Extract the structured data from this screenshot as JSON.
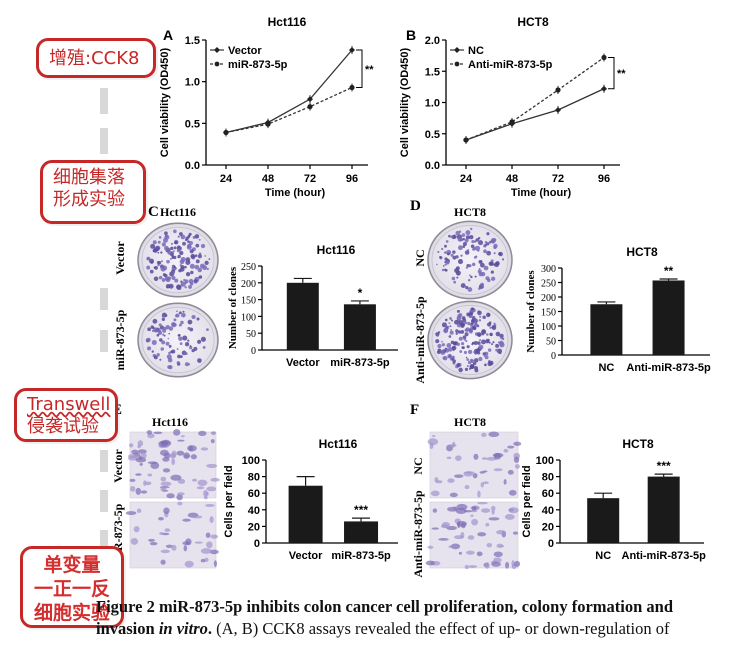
{
  "panels": {
    "A": {
      "letter": "A",
      "title": "Hct116",
      "ylabel": "Cell viability (OD450)",
      "xlabel": "Time (hour)",
      "sig": "**"
    },
    "B": {
      "letter": "B",
      "title": "HCT8",
      "ylabel": "Cell viability (OD450)",
      "xlabel": "Time (hour)",
      "sig": "**"
    },
    "C": {
      "letter": "C",
      "photo_title": "Hct116",
      "row_labels": [
        "Vector",
        "miR-873-5p"
      ],
      "chart_title": "Hct116",
      "ylabel": "Number of clones",
      "sig": "*"
    },
    "D": {
      "letter": "D",
      "photo_title": "HCT8",
      "row_labels": [
        "NC",
        "Anti-miR-873-5p"
      ],
      "chart_title": "HCT8",
      "ylabel": "Number of clones",
      "sig": "**"
    },
    "E": {
      "letter": "E",
      "photo_title": "Hct116",
      "row_labels": [
        "Vector",
        "miR-873-5p"
      ],
      "chart_title": "Hct116",
      "ylabel": "Cells per field",
      "sig": "***"
    },
    "F": {
      "letter": "F",
      "photo_title": "HCT8",
      "row_labels": [
        "NC",
        "Anti-miR-873-5p"
      ],
      "chart_title": "HCT8",
      "ylabel": "Cells per field",
      "sig": "***"
    }
  },
  "callouts": {
    "cck8": "增殖:CCK8",
    "colony": [
      "细胞集落",
      "形成实验"
    ],
    "transwell": [
      "Transwell",
      "侵袭试验"
    ],
    "design": [
      "单变量",
      "一正一反",
      "细胞实验"
    ]
  },
  "caption": {
    "heading": "Figure 2 miR-873-5p inhibits colon cancer cell proliferation, colony formation and",
    "heading_line2_bold": "invasion",
    "heading_line2_italic": "in vitro",
    "heading_line2_period": ".",
    "body": " (A, B) CCK8 assays revealed the effect of up- or down-regulation of"
  },
  "chart_data": [
    {
      "type": "line",
      "id": "A",
      "title": "Hct116",
      "xlabel": "Time (hour)",
      "ylabel": "Cell viability (OD450)",
      "x": [
        24,
        48,
        72,
        96
      ],
      "ylim": [
        0,
        1.5
      ],
      "yticks": [
        0.0,
        0.5,
        1.0,
        1.5
      ],
      "series": [
        {
          "name": "Vector",
          "values": [
            0.39,
            0.51,
            0.79,
            1.38
          ],
          "style": "solid"
        },
        {
          "name": "miR-873-5p",
          "values": [
            0.39,
            0.49,
            0.7,
            0.93
          ],
          "style": "dashed"
        }
      ],
      "annotation": "**",
      "legend": "top-left"
    },
    {
      "type": "line",
      "id": "B",
      "title": "HCT8",
      "xlabel": "Time (hour)",
      "ylabel": "Cell viability (OD450)",
      "x": [
        24,
        48,
        72,
        96
      ],
      "ylim": [
        0,
        2.0
      ],
      "yticks": [
        0.0,
        0.5,
        1.0,
        1.5,
        2.0
      ],
      "series": [
        {
          "name": "NC",
          "values": [
            0.4,
            0.66,
            0.88,
            1.22
          ],
          "style": "solid"
        },
        {
          "name": "Anti-miR-873-5p",
          "values": [
            0.4,
            0.69,
            1.2,
            1.72
          ],
          "style": "dashed"
        }
      ],
      "annotation": "**",
      "legend": "top-left"
    },
    {
      "type": "bar",
      "id": "C",
      "title": "Hct116",
      "ylabel": "Number of clones",
      "categories": [
        "Vector",
        "miR-873-5p"
      ],
      "values": [
        200,
        136
      ],
      "errors": [
        13,
        10
      ],
      "ylim": [
        0,
        250
      ],
      "yticks": [
        0,
        50,
        100,
        150,
        200,
        250
      ],
      "annotation": "*"
    },
    {
      "type": "bar",
      "id": "D",
      "title": "HCT8",
      "ylabel": "Number of clones",
      "categories": [
        "NC",
        "Anti-miR-873-5p"
      ],
      "values": [
        175,
        257
      ],
      "errors": [
        8,
        5
      ],
      "ylim": [
        0,
        300
      ],
      "yticks": [
        0,
        50,
        100,
        150,
        200,
        250,
        300
      ],
      "annotation": "**"
    },
    {
      "type": "bar",
      "id": "E",
      "title": "Hct116",
      "ylabel": "Cells per field",
      "categories": [
        "Vector",
        "miR-873-5p"
      ],
      "values": [
        69,
        26
      ],
      "errors": [
        11,
        4
      ],
      "ylim": [
        0,
        100
      ],
      "yticks": [
        0,
        20,
        40,
        60,
        80,
        100
      ],
      "annotation": "***"
    },
    {
      "type": "bar",
      "id": "F",
      "title": "HCT8",
      "ylabel": "Cells per field",
      "categories": [
        "NC",
        "Anti-miR-873-5p"
      ],
      "values": [
        54,
        80
      ],
      "errors": [
        6,
        3
      ],
      "ylim": [
        0,
        100
      ],
      "yticks": [
        0,
        20,
        40,
        60,
        80,
        100
      ],
      "annotation": "***"
    }
  ]
}
